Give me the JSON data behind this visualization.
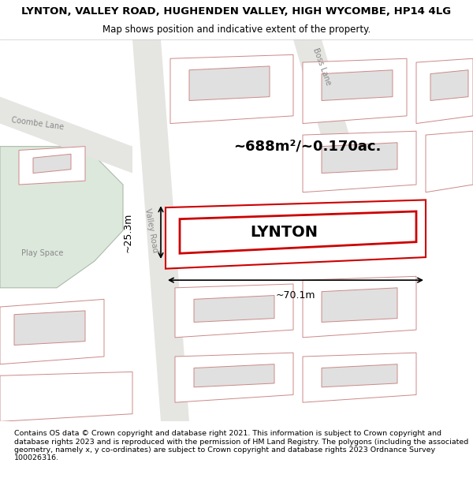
{
  "title_line1": "LYNTON, VALLEY ROAD, HUGHENDEN VALLEY, HIGH WYCOMBE, HP14 4LG",
  "title_line2": "Map shows position and indicative extent of the property.",
  "footer_text": "Contains OS data © Crown copyright and database right 2021. This information is subject to Crown copyright and database rights 2023 and is reproduced with the permission of HM Land Registry. The polygons (including the associated geometry, namely x, y co-ordinates) are subject to Crown copyright and database rights 2023 Ordnance Survey 100026316.",
  "area_label": "~688m²/~0.170ac.",
  "property_label": "LYNTON",
  "dim_width": "~70.1m",
  "dim_height": "~25.3m",
  "bg_map_color": "#f5f5f0",
  "green_area_color": "#dde8dc",
  "road_color": "#e8e8e8",
  "building_fill": "#e0e0e0",
  "building_stroke": "#cc8888",
  "property_stroke": "#cc0000",
  "street_label_valley_road": "Valley Road",
  "street_label_coombe_lane": "Coombe Lane",
  "street_label_boss_lane": "Boss Lane"
}
